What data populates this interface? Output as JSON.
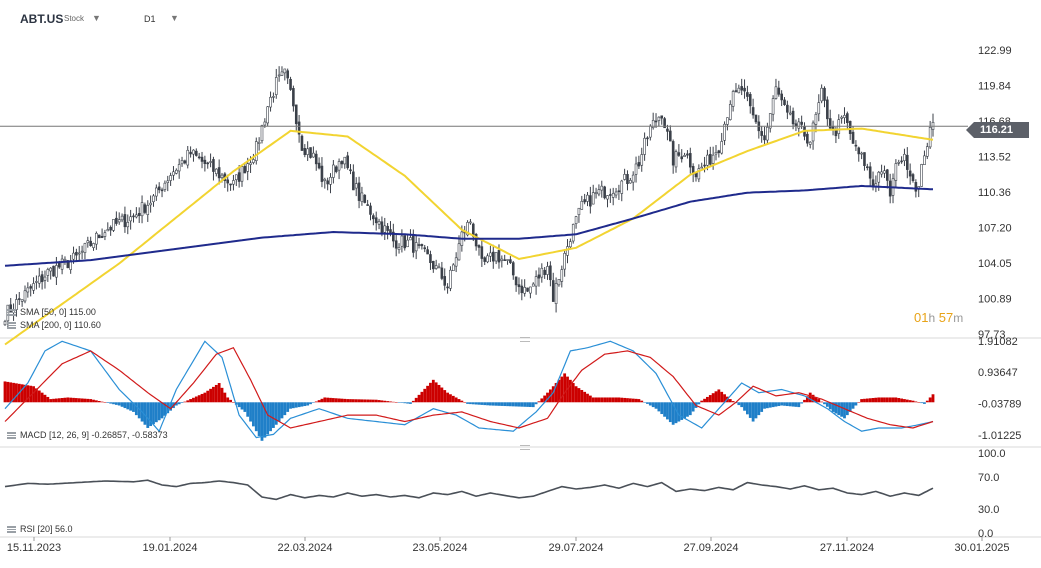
{
  "header": {
    "symbol": "ABT.US",
    "asset_type": "Stock",
    "timeframe": "D1"
  },
  "indicators": {
    "sma_legend_1": "SMA [50, 0]  115.00",
    "sma_legend_2": "SMA [200, 0]  110.60",
    "macd_legend": "MACD [12, 26, 9]  -0.26857,  -0.58373",
    "rsi_legend": "RSI [20]  56.0"
  },
  "countdown": {
    "hours": "01",
    "h_unit": "h",
    "minutes": "57",
    "m_unit": "m"
  },
  "current_price_label": "116.21",
  "colors": {
    "candle": "#3b4049",
    "sma50": "#f2d431",
    "sma200": "#1f2a8c",
    "macd_pos": "#cc0000",
    "macd_neg": "#1f7fc8",
    "macd_line": "#2a8fd6",
    "signal_line": "#d11a1a",
    "rsi_line": "#4a5058",
    "countdown": "#e8a317",
    "price_tag": "#5c6068"
  },
  "chart_data": [
    {
      "type": "candlestick",
      "y_ticks": [
        "122.99",
        "119.84",
        "116.68",
        "113.52",
        "110.36",
        "107.20",
        "104.05",
        "100.89",
        "97.73"
      ],
      "ylim": [
        97.73,
        122.99
      ],
      "current_price": 116.21,
      "x_tick_labels": [
        "15.11.2023",
        "19.01.2024",
        "22.03.2024",
        "23.05.2024",
        "29.07.2024",
        "27.09.2024",
        "27.11.2024",
        "30.01.2025"
      ],
      "close_path": [
        [
          0,
          99.5
        ],
        [
          8,
          101.5
        ],
        [
          15,
          103.2
        ],
        [
          25,
          104.5
        ],
        [
          35,
          107.0
        ],
        [
          45,
          108.2
        ],
        [
          52,
          109.8
        ],
        [
          58,
          112.0
        ],
        [
          65,
          113.8
        ],
        [
          72,
          112.5
        ],
        [
          80,
          111.0
        ],
        [
          88,
          114.2
        ],
        [
          92,
          118.0
        ],
        [
          95,
          120.0
        ],
        [
          98,
          120.8
        ],
        [
          101,
          118.3
        ],
        [
          104,
          114.6
        ],
        [
          108,
          113.5
        ],
        [
          112,
          111.0
        ],
        [
          118,
          113.5
        ],
        [
          124,
          110.0
        ],
        [
          130,
          108.0
        ],
        [
          136,
          106.0
        ],
        [
          142,
          105.8
        ],
        [
          148,
          104.5
        ],
        [
          152,
          103.2
        ],
        [
          155,
          102.0
        ],
        [
          160,
          106.5
        ],
        [
          163,
          107.8
        ],
        [
          167,
          103.8
        ],
        [
          172,
          104.8
        ],
        [
          176,
          104.0
        ],
        [
          180,
          102.0
        ],
        [
          183,
          101.5
        ],
        [
          186,
          102.5
        ],
        [
          190,
          104.0
        ],
        [
          192,
          101.0
        ],
        [
          195,
          103.8
        ],
        [
          198,
          106.5
        ],
        [
          202,
          109.0
        ],
        [
          207,
          110.2
        ],
        [
          212,
          110.6
        ],
        [
          218,
          111.5
        ],
        [
          222,
          113.0
        ],
        [
          226,
          116.0
        ],
        [
          230,
          117.5
        ],
        [
          234,
          113.2
        ],
        [
          238,
          114.0
        ],
        [
          242,
          112.0
        ],
        [
          246,
          113.0
        ],
        [
          250,
          114.5
        ],
        [
          254,
          118.5
        ],
        [
          258,
          119.5
        ],
        [
          262,
          117.0
        ],
        [
          266,
          115.0
        ],
        [
          270,
          119.5
        ],
        [
          274,
          117.0
        ],
        [
          278,
          116.0
        ],
        [
          282,
          115.0
        ],
        [
          286,
          119.0
        ],
        [
          290,
          115.5
        ],
        [
          294,
          117.0
        ],
        [
          298,
          114.0
        ],
        [
          301,
          113.0
        ],
        [
          304,
          111.0
        ],
        [
          307,
          112.5
        ],
        [
          310,
          110.2
        ],
        [
          313,
          113.5
        ],
        [
          316,
          113.0
        ],
        [
          318,
          111.5
        ],
        [
          320,
          110.6
        ],
        [
          322,
          114.0
        ],
        [
          325,
          116.3
        ]
      ],
      "series": [
        {
          "name": "SMA [50, 0]",
          "x": [
            0,
            40,
            80,
            100,
            120,
            140,
            160,
            180,
            200,
            220,
            240,
            260,
            280,
            300,
            325
          ],
          "values": [
            96.8,
            104.0,
            112.2,
            115.8,
            115.3,
            111.8,
            107.0,
            104.4,
            105.4,
            108.0,
            111.9,
            114.0,
            115.8,
            116.0,
            115.0
          ]
        },
        {
          "name": "SMA [200, 0]",
          "x": [
            0,
            30,
            60,
            90,
            115,
            140,
            160,
            180,
            200,
            220,
            240,
            260,
            280,
            300,
            325
          ],
          "values": [
            103.8,
            104.3,
            105.3,
            106.3,
            106.8,
            106.6,
            106.2,
            106.2,
            106.6,
            108.0,
            109.5,
            110.3,
            110.5,
            110.9,
            110.6
          ]
        }
      ]
    },
    {
      "type": "bar",
      "title": "MACD",
      "y_ticks": [
        "1.91082",
        "0.93647",
        "-0.03789",
        "-1.01225"
      ],
      "ylim": [
        -1.3,
        1.91
      ],
      "histogram_path": [
        [
          0,
          0.65
        ],
        [
          10,
          0.5
        ],
        [
          16,
          0.1
        ],
        [
          22,
          0.15
        ],
        [
          30,
          0.1
        ],
        [
          40,
          -0.1
        ],
        [
          45,
          -0.3
        ],
        [
          50,
          -0.8
        ],
        [
          55,
          -0.5
        ],
        [
          60,
          -0.1
        ],
        [
          70,
          0.3
        ],
        [
          75,
          0.6
        ],
        [
          78,
          0.15
        ],
        [
          84,
          -0.3
        ],
        [
          90,
          -1.2
        ],
        [
          96,
          -0.6
        ],
        [
          100,
          -0.2
        ],
        [
          106,
          -0.1
        ],
        [
          112,
          0.15
        ],
        [
          120,
          0.1
        ],
        [
          130,
          0.08
        ],
        [
          142,
          -0.05
        ],
        [
          150,
          0.7
        ],
        [
          155,
          0.3
        ],
        [
          162,
          -0.05
        ],
        [
          170,
          -0.1
        ],
        [
          185,
          -0.15
        ],
        [
          190,
          0.3
        ],
        [
          196,
          0.9
        ],
        [
          200,
          0.5
        ],
        [
          206,
          0.15
        ],
        [
          215,
          0.15
        ],
        [
          222,
          0.1
        ],
        [
          228,
          -0.2
        ],
        [
          234,
          -0.7
        ],
        [
          240,
          -0.4
        ],
        [
          244,
          0.05
        ],
        [
          250,
          0.4
        ],
        [
          254,
          0.1
        ],
        [
          258,
          -0.15
        ],
        [
          262,
          -0.6
        ],
        [
          266,
          -0.2
        ],
        [
          272,
          -0.1
        ],
        [
          278,
          -0.15
        ],
        [
          282,
          0.3
        ],
        [
          285,
          0.1
        ],
        [
          290,
          -0.3
        ],
        [
          294,
          -0.5
        ],
        [
          300,
          0.1
        ],
        [
          306,
          0.15
        ],
        [
          312,
          0.15
        ],
        [
          318,
          0.05
        ],
        [
          322,
          -0.05
        ],
        [
          325,
          0.25
        ]
      ],
      "series": [
        {
          "name": "MACD",
          "x": [
            0,
            8,
            14,
            20,
            30,
            40,
            48,
            54,
            60,
            70,
            76,
            82,
            88,
            94,
            100,
            110,
            120,
            130,
            140,
            150,
            158,
            166,
            178,
            186,
            192,
            198,
            204,
            212,
            220,
            228,
            236,
            244,
            250,
            258,
            264,
            272,
            280,
            288,
            294,
            300,
            306,
            314,
            320,
            325
          ],
          "values": [
            -0.2,
            0.6,
            1.6,
            1.9,
            1.6,
            0.4,
            -0.3,
            -0.9,
            0.4,
            1.9,
            1.4,
            -0.4,
            -1.1,
            -1.0,
            -0.5,
            -0.2,
            -0.5,
            -0.6,
            -0.7,
            -0.2,
            -0.4,
            -0.8,
            -0.9,
            -0.3,
            0.3,
            1.6,
            1.7,
            1.9,
            1.6,
            0.9,
            -0.4,
            -0.8,
            -0.2,
            0.6,
            0.3,
            0.4,
            0.2,
            -0.2,
            -0.6,
            -0.9,
            -0.8,
            -0.8,
            -0.7,
            -0.6
          ]
        },
        {
          "name": "Signal",
          "x": [
            0,
            10,
            20,
            30,
            40,
            50,
            58,
            66,
            74,
            80,
            86,
            92,
            100,
            110,
            120,
            130,
            140,
            150,
            160,
            170,
            180,
            190,
            196,
            202,
            210,
            218,
            226,
            234,
            242,
            250,
            256,
            262,
            270,
            278,
            286,
            294,
            302,
            310,
            318,
            325
          ],
          "values": [
            -0.6,
            0.3,
            1.2,
            1.6,
            1.0,
            0.3,
            -0.2,
            0.6,
            1.5,
            1.7,
            0.7,
            -0.4,
            -0.8,
            -0.6,
            -0.4,
            -0.4,
            -0.6,
            -0.4,
            -0.3,
            -0.6,
            -0.8,
            -0.5,
            0.3,
            1.0,
            1.5,
            1.6,
            1.4,
            0.8,
            -0.1,
            -0.4,
            0.0,
            0.5,
            0.2,
            0.3,
            0.1,
            -0.2,
            -0.5,
            -0.7,
            -0.8,
            -0.6
          ]
        }
      ]
    },
    {
      "type": "line",
      "title": "RSI",
      "y_ticks": [
        "100.0",
        "70.0",
        "30.0",
        "0.0"
      ],
      "ylim": [
        0,
        100
      ],
      "series": [
        {
          "name": "RSI [20]",
          "x": [
            0,
            8,
            15,
            25,
            35,
            45,
            50,
            55,
            60,
            65,
            70,
            75,
            80,
            85,
            90,
            95,
            100,
            105,
            110,
            115,
            120,
            125,
            130,
            135,
            140,
            145,
            150,
            155,
            160,
            165,
            170,
            175,
            180,
            185,
            190,
            195,
            200,
            205,
            210,
            215,
            220,
            225,
            230,
            235,
            240,
            245,
            250,
            255,
            260,
            265,
            270,
            275,
            280,
            285,
            290,
            295,
            300,
            305,
            310,
            315,
            320,
            325
          ],
          "values": [
            58,
            62,
            61,
            63,
            65,
            64,
            66,
            60,
            58,
            62,
            63,
            65,
            63,
            60,
            45,
            42,
            48,
            44,
            47,
            45,
            50,
            46,
            48,
            45,
            47,
            44,
            50,
            48,
            52,
            46,
            50,
            47,
            44,
            46,
            52,
            58,
            55,
            57,
            60,
            56,
            62,
            58,
            63,
            52,
            55,
            53,
            57,
            54,
            63,
            60,
            58,
            55,
            59,
            54,
            56,
            50,
            48,
            52,
            46,
            50,
            47,
            56
          ]
        }
      ]
    }
  ]
}
